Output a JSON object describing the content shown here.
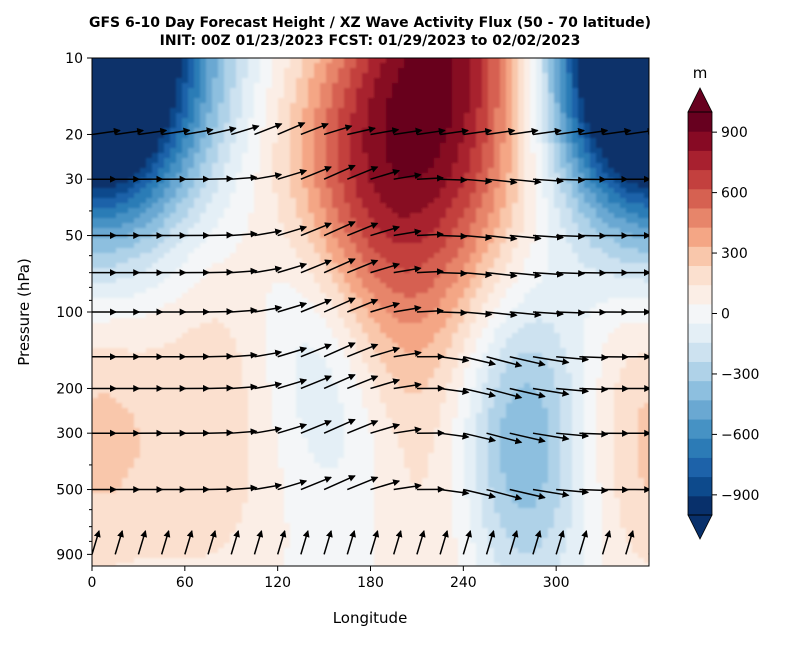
{
  "chart_data": {
    "type": "heatmap",
    "title_line1": "GFS 6-10 Day Forecast Height / XZ Wave Activity Flux (50 - 70 latitude)",
    "title_line2": "INIT: 00Z 01/23/2023     FCST: 01/29/2023 to 02/02/2023",
    "xlabel": "Longitude",
    "ylabel": "Pressure (hPa)",
    "x_ticks": [
      "0",
      "60",
      "120",
      "180",
      "240",
      "300"
    ],
    "y_ticks": [
      "10",
      "20",
      "30",
      "50",
      "100",
      "200",
      "300",
      "500",
      "900"
    ],
    "xlim": [
      0,
      360
    ],
    "ylim": [
      10,
      1000
    ],
    "y_scale": "log-inverted",
    "colorbar": {
      "unit": "m",
      "ticks": [
        "900",
        "600",
        "300",
        "0",
        "−300",
        "−600",
        "−900"
      ],
      "range": [
        -1000,
        1000
      ],
      "extend": "both",
      "colors_low_to_high": [
        "#08306b",
        "#0d4a8c",
        "#1d62a9",
        "#2c7bb6",
        "#4692c4",
        "#6aa8d2",
        "#8dbfdf",
        "#afd2e8",
        "#cde2f0",
        "#e4eff6",
        "#f4f6f8",
        "#fbeee6",
        "#fbe0cf",
        "#f9c7ab",
        "#f4a685",
        "#e7856a",
        "#d66151",
        "#c3403e",
        "#a8202f",
        "#870a24",
        "#67001f"
      ]
    },
    "height_anomaly_centers": [
      {
        "lon": 15,
        "p": 10,
        "value": -1000
      },
      {
        "lon": 345,
        "p": 10,
        "value": -950
      },
      {
        "lon": 215,
        "p": 15,
        "value": 1000
      },
      {
        "lon": 140,
        "p": 120,
        "value": -450
      },
      {
        "lon": 275,
        "p": 300,
        "value": -550
      },
      {
        "lon": 355,
        "p": 300,
        "value": 250
      },
      {
        "lon": 70,
        "p": 450,
        "value": 120
      },
      {
        "lon": 230,
        "p": 600,
        "value": 180
      }
    ],
    "wave_flux_levels": [
      20,
      30,
      50,
      70,
      100,
      150,
      200,
      300,
      500,
      900
    ],
    "wave_flux_longitudes": [
      0,
      15,
      30,
      45,
      60,
      75,
      90,
      105,
      120,
      135,
      150,
      165,
      180,
      195,
      210,
      225,
      240,
      255,
      270,
      285,
      300,
      315,
      330,
      345,
      360
    ]
  }
}
